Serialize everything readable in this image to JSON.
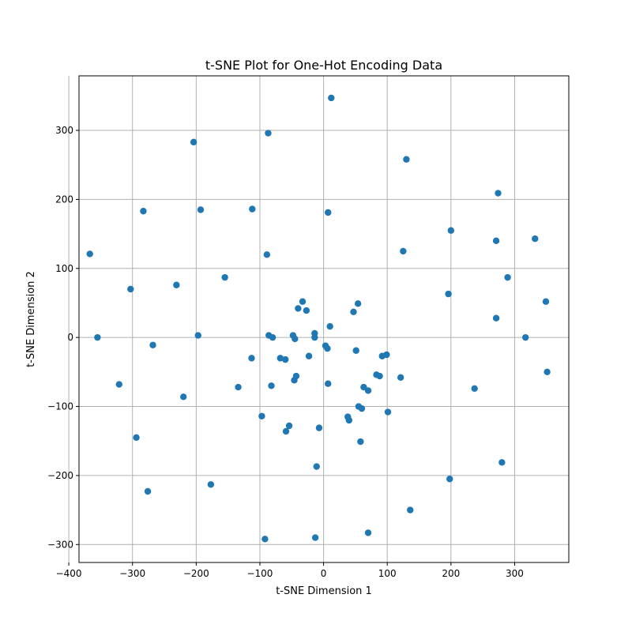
{
  "chart_data": {
    "type": "scatter",
    "title": "t-SNE Plot for One-Hot Encoding Data",
    "xlabel": "t-SNE Dimension 1",
    "ylabel": "t-SNE Dimension 2",
    "xlim": [
      -384,
      385
    ],
    "ylim": [
      -326,
      379
    ],
    "xticks": [
      -400,
      -300,
      -200,
      -100,
      0,
      100,
      200,
      300
    ],
    "yticks": [
      -300,
      -200,
      -100,
      0,
      100,
      200,
      300
    ],
    "grid": true,
    "marker_color": "#1f77b4",
    "series": [
      {
        "x": [
          12,
          -87,
          -204,
          130,
          -283,
          -193,
          -112,
          7,
          274,
          200,
          271,
          332,
          -367,
          -89,
          125,
          -155,
          -303,
          -231,
          289,
          349,
          -33,
          54,
          -40,
          47,
          196,
          -27,
          -355,
          -197,
          -86,
          -48,
          -14,
          10,
          317,
          -45,
          -80,
          3,
          -268,
          51,
          -23,
          99,
          92,
          -113,
          -68,
          -60,
          351,
          -321,
          83,
          88,
          121,
          -46,
          -43,
          7,
          -82,
          -134,
          63,
          70,
          101,
          237,
          -220,
          55,
          60,
          -97,
          38,
          40,
          -54,
          -59,
          -7,
          58,
          -294,
          -11,
          280,
          198,
          -276,
          -177,
          136,
          70,
          -92,
          -13,
          271,
          6,
          -14
        ],
        "y": [
          347,
          296,
          283,
          258,
          183,
          185,
          186,
          181,
          209,
          155,
          140,
          143,
          121,
          120,
          125,
          87,
          70,
          76,
          87,
          52,
          52,
          49,
          42,
          37,
          63,
          39,
          0,
          3,
          3,
          3,
          6,
          16,
          0,
          -2,
          0,
          -12,
          -11,
          -19,
          -27,
          -25,
          -27,
          -30,
          -30,
          -32,
          -50,
          -68,
          -54,
          -56,
          -58,
          -62,
          -56,
          -67,
          -70,
          -72,
          -72,
          -77,
          -108,
          -74,
          -86,
          -100,
          -103,
          -114,
          -115,
          -120,
          -128,
          -136,
          -131,
          -151,
          -145,
          -187,
          -181,
          -205,
          -223,
          -213,
          -250,
          -283,
          -292,
          -290,
          28,
          -16,
          0
        ]
      }
    ]
  }
}
